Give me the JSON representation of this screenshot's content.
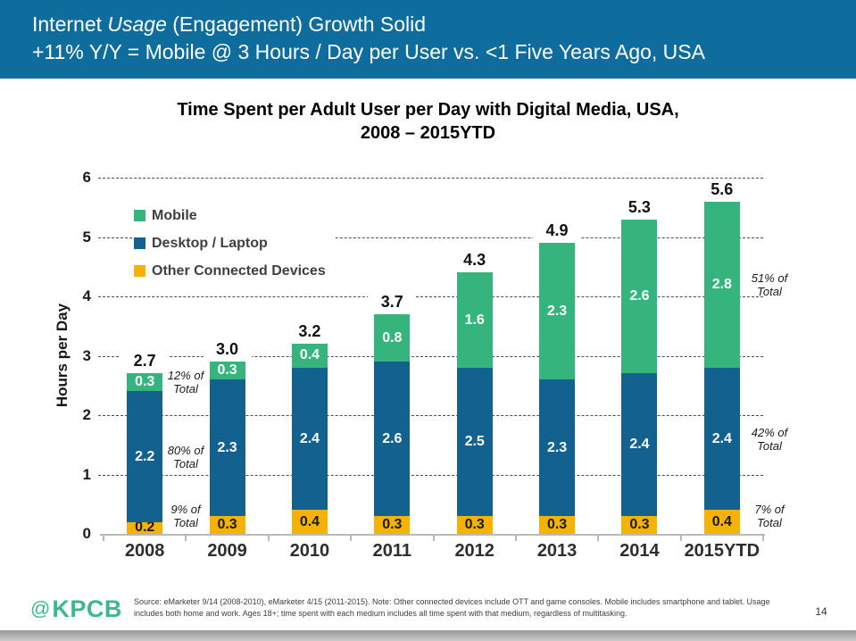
{
  "header": {
    "line1_prefix": "Internet",
    "line1_italic": "Usage",
    "line1_suffix": "(Engagement) Growth Solid",
    "line2": "+11% Y/Y = Mobile @ 3 Hours / Day per User vs. <1  Five Years Ago, USA",
    "bg_color": "#0f6d9e"
  },
  "chart_data": {
    "type": "bar",
    "stacked": true,
    "title_line1": "Time Spent per Adult User per Day with Digital Media, USA,",
    "title_line2": "2008 – 2015YTD",
    "ylabel": "Hours per Day",
    "ylim": [
      0,
      6
    ],
    "yticks": [
      0,
      1,
      2,
      3,
      4,
      5,
      6
    ],
    "grid": "dashed horizontal",
    "legend_position": "upper left inside plot",
    "categories": [
      "2008",
      "2009",
      "2010",
      "2011",
      "2012",
      "2013",
      "2014",
      "2015YTD"
    ],
    "series": [
      {
        "name": "Other Connected Devices",
        "color": "#f5b201",
        "label_color": "#1a1a1a",
        "values": [
          0.2,
          0.3,
          0.4,
          0.3,
          0.3,
          0.3,
          0.3,
          0.4
        ]
      },
      {
        "name": "Desktop / Laptop",
        "color": "#12618f",
        "label_color": "#ffffff",
        "values": [
          2.2,
          2.3,
          2.4,
          2.6,
          2.5,
          2.3,
          2.4,
          2.4
        ]
      },
      {
        "name": "Mobile",
        "color": "#35b57d",
        "label_color": "#ffffff",
        "values": [
          0.3,
          0.3,
          0.4,
          0.8,
          1.6,
          2.3,
          2.6,
          2.8
        ]
      }
    ],
    "totals": [
      "2.7",
      "3.0",
      "3.2",
      "3.7",
      "4.3",
      "4.9",
      "5.3",
      "5.6"
    ],
    "legend": [
      {
        "label": "Mobile",
        "color": "#35b57d"
      },
      {
        "label": "Desktop / Laptop",
        "color": "#12618f"
      },
      {
        "label": "Other Connected Devices",
        "color": "#f5b201"
      }
    ],
    "annotations_left": [
      "12% of Total",
      "80% of Total",
      "9% of Total"
    ],
    "annotations_right": [
      "51% of Total",
      "42% of Total",
      "7% of Total"
    ]
  },
  "footer": {
    "logo_at": "@",
    "logo_text": "KPCB",
    "source_text": "Source: eMarketer 9/14 (2008-2010), eMarketer 4/15 (2011-2015). Note: Other connected devices include OTT and game consoles. Mobile includes smartphone and tablet. Usage includes both home and work. Ages 18+; time spent with each medium includes all time spent with that medium, regardless of multitasking.",
    "page_number": "14"
  }
}
